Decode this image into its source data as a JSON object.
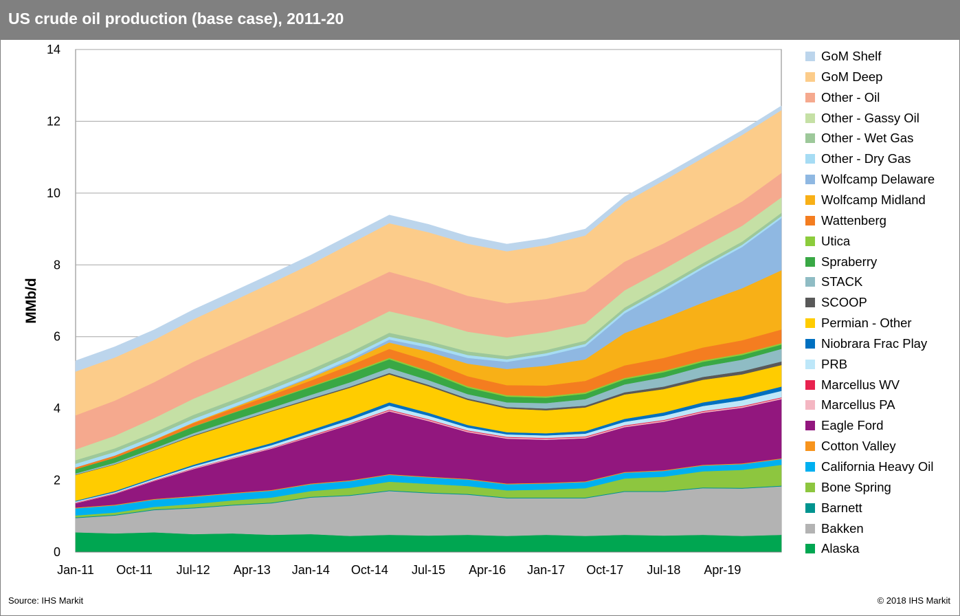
{
  "title": "US crude oil production (base case), 2011-20",
  "source": "Source: IHS Markit",
  "copyright": "© 2018 IHS Markit",
  "chart_data": {
    "type": "area",
    "stacked": true,
    "title": "US crude oil production (base case), 2011-20",
    "ylabel": "MMb/d",
    "xlabel": "",
    "ylim": [
      0,
      14
    ],
    "yticks": [
      0,
      2,
      4,
      6,
      8,
      10,
      12,
      14
    ],
    "grid": "horizontal",
    "legend_position": "right",
    "x": [
      "Jan-11",
      "Jul-11",
      "Jan-12",
      "Jul-12",
      "Jan-13",
      "Jul-13",
      "Jan-14",
      "Jul-14",
      "Jan-15",
      "Jul-15",
      "Jan-16",
      "Jul-16",
      "Jan-17",
      "Jul-17",
      "Jan-18",
      "Jul-18",
      "Jan-19",
      "Jul-19",
      "Jan-20"
    ],
    "xtick_labels": [
      "Jan-11",
      "Oct-11",
      "Jul-12",
      "Apr-13",
      "Jan-14",
      "Oct-14",
      "Jul-15",
      "Apr-16",
      "Jan-17",
      "Oct-17",
      "Jul-18",
      "Apr-19"
    ],
    "series": [
      {
        "name": "Alaska",
        "color": "#00a651",
        "values": [
          0.55,
          0.52,
          0.55,
          0.5,
          0.52,
          0.48,
          0.5,
          0.45,
          0.48,
          0.46,
          0.48,
          0.45,
          0.48,
          0.45,
          0.48,
          0.46,
          0.48,
          0.45,
          0.48
        ]
      },
      {
        "name": "Bakken",
        "color": "#b3b3b3",
        "values": [
          0.4,
          0.5,
          0.62,
          0.72,
          0.78,
          0.88,
          1.02,
          1.12,
          1.22,
          1.18,
          1.12,
          1.05,
          1.02,
          1.05,
          1.2,
          1.22,
          1.3,
          1.32,
          1.35
        ]
      },
      {
        "name": "Barnett",
        "color": "#00948f",
        "values": [
          0.02,
          0.02,
          0.02,
          0.02,
          0.02,
          0.02,
          0.02,
          0.02,
          0.02,
          0.02,
          0.02,
          0.02,
          0.02,
          0.02,
          0.02,
          0.02,
          0.02,
          0.02,
          0.02
        ]
      },
      {
        "name": "Bone Spring",
        "color": "#8dc63f",
        "values": [
          0.05,
          0.06,
          0.07,
          0.1,
          0.12,
          0.14,
          0.16,
          0.2,
          0.24,
          0.24,
          0.22,
          0.2,
          0.22,
          0.26,
          0.35,
          0.4,
          0.45,
          0.5,
          0.58
        ]
      },
      {
        "name": "California Heavy Oil",
        "color": "#00b0f0",
        "values": [
          0.2,
          0.2,
          0.2,
          0.2,
          0.19,
          0.19,
          0.19,
          0.19,
          0.19,
          0.18,
          0.18,
          0.17,
          0.17,
          0.17,
          0.16,
          0.16,
          0.16,
          0.16,
          0.16
        ]
      },
      {
        "name": "Cotton Valley",
        "color": "#f7941d",
        "values": [
          0.02,
          0.02,
          0.02,
          0.02,
          0.02,
          0.02,
          0.02,
          0.02,
          0.02,
          0.02,
          0.02,
          0.02,
          0.02,
          0.02,
          0.02,
          0.02,
          0.02,
          0.02,
          0.02
        ]
      },
      {
        "name": "Eagle Ford",
        "color": "#92177e",
        "values": [
          0.12,
          0.3,
          0.5,
          0.75,
          0.95,
          1.15,
          1.3,
          1.55,
          1.75,
          1.55,
          1.3,
          1.25,
          1.2,
          1.2,
          1.25,
          1.35,
          1.45,
          1.55,
          1.65
        ]
      },
      {
        "name": "Marcellus PA",
        "color": "#f4b6c2",
        "values": [
          0.01,
          0.01,
          0.01,
          0.02,
          0.02,
          0.02,
          0.02,
          0.02,
          0.03,
          0.03,
          0.03,
          0.03,
          0.03,
          0.03,
          0.03,
          0.03,
          0.03,
          0.03,
          0.03
        ]
      },
      {
        "name": "Marcellus WV",
        "color": "#e8224f",
        "values": [
          0.01,
          0.01,
          0.01,
          0.01,
          0.01,
          0.01,
          0.02,
          0.02,
          0.02,
          0.02,
          0.02,
          0.02,
          0.02,
          0.02,
          0.02,
          0.02,
          0.02,
          0.02,
          0.02
        ]
      },
      {
        "name": "PRB",
        "color": "#bde7f9",
        "values": [
          0.03,
          0.03,
          0.04,
          0.05,
          0.06,
          0.07,
          0.08,
          0.09,
          0.11,
          0.1,
          0.08,
          0.07,
          0.07,
          0.08,
          0.1,
          0.12,
          0.14,
          0.16,
          0.18
        ]
      },
      {
        "name": "Niobrara Frac Play",
        "color": "#0070c0",
        "values": [
          0.02,
          0.03,
          0.03,
          0.04,
          0.05,
          0.06,
          0.07,
          0.08,
          0.09,
          0.08,
          0.07,
          0.06,
          0.06,
          0.07,
          0.08,
          0.09,
          0.1,
          0.11,
          0.12
        ]
      },
      {
        "name": "Permian - Other",
        "color": "#ffcc00",
        "values": [
          0.72,
          0.74,
          0.76,
          0.8,
          0.84,
          0.88,
          0.85,
          0.82,
          0.78,
          0.74,
          0.7,
          0.66,
          0.64,
          0.66,
          0.68,
          0.65,
          0.63,
          0.61,
          0.6
        ]
      },
      {
        "name": "SCOOP",
        "color": "#595959",
        "values": [
          0.01,
          0.01,
          0.01,
          0.02,
          0.02,
          0.02,
          0.03,
          0.03,
          0.04,
          0.04,
          0.04,
          0.04,
          0.05,
          0.05,
          0.06,
          0.07,
          0.08,
          0.09,
          0.1
        ]
      },
      {
        "name": "STACK",
        "color": "#8fbcc4",
        "values": [
          0.03,
          0.04,
          0.05,
          0.06,
          0.07,
          0.08,
          0.1,
          0.12,
          0.14,
          0.13,
          0.12,
          0.13,
          0.15,
          0.18,
          0.22,
          0.26,
          0.29,
          0.32,
          0.35
        ]
      },
      {
        "name": "Spraberry",
        "color": "#39a845",
        "values": [
          0.12,
          0.14,
          0.16,
          0.18,
          0.2,
          0.21,
          0.22,
          0.24,
          0.24,
          0.22,
          0.18,
          0.16,
          0.15,
          0.15,
          0.14,
          0.14,
          0.13,
          0.13,
          0.12
        ]
      },
      {
        "name": "Utica",
        "color": "#8ccc3c",
        "values": [
          0.0,
          0.0,
          0.0,
          0.01,
          0.01,
          0.02,
          0.02,
          0.03,
          0.04,
          0.04,
          0.04,
          0.04,
          0.04,
          0.04,
          0.04,
          0.04,
          0.04,
          0.04,
          0.04
        ]
      },
      {
        "name": "Wattenberg",
        "color": "#f47d20",
        "values": [
          0.05,
          0.06,
          0.07,
          0.09,
          0.11,
          0.13,
          0.16,
          0.2,
          0.25,
          0.28,
          0.28,
          0.28,
          0.3,
          0.32,
          0.35,
          0.36,
          0.36,
          0.37,
          0.38
        ]
      },
      {
        "name": "Wolfcamp Midland",
        "color": "#f8b017",
        "values": [
          0.0,
          0.0,
          0.01,
          0.02,
          0.03,
          0.05,
          0.08,
          0.12,
          0.18,
          0.25,
          0.35,
          0.45,
          0.55,
          0.6,
          0.9,
          1.1,
          1.25,
          1.45,
          1.65
        ]
      },
      {
        "name": "Wolfcamp Delaware",
        "color": "#8fb8e2",
        "values": [
          0.0,
          0.0,
          0.0,
          0.0,
          0.01,
          0.02,
          0.03,
          0.05,
          0.08,
          0.12,
          0.16,
          0.2,
          0.28,
          0.36,
          0.55,
          0.75,
          0.95,
          1.15,
          1.45
        ]
      },
      {
        "name": "Other - Dry Gas",
        "color": "#a6dcf4",
        "values": [
          0.1,
          0.1,
          0.1,
          0.1,
          0.09,
          0.09,
          0.09,
          0.09,
          0.08,
          0.08,
          0.08,
          0.07,
          0.07,
          0.07,
          0.07,
          0.07,
          0.06,
          0.06,
          0.06
        ]
      },
      {
        "name": "Other - Wet Gas",
        "color": "#9dc89a",
        "values": [
          0.1,
          0.1,
          0.1,
          0.11,
          0.11,
          0.11,
          0.11,
          0.11,
          0.11,
          0.1,
          0.1,
          0.09,
          0.09,
          0.09,
          0.09,
          0.09,
          0.09,
          0.09,
          0.09
        ]
      },
      {
        "name": "Other - Gassy Oil",
        "color": "#c5e0a5",
        "values": [
          0.3,
          0.35,
          0.4,
          0.45,
          0.5,
          0.55,
          0.58,
          0.6,
          0.6,
          0.58,
          0.55,
          0.52,
          0.5,
          0.48,
          0.48,
          0.46,
          0.45,
          0.44,
          0.43
        ]
      },
      {
        "name": "Other - Oil",
        "color": "#f5a98e",
        "values": [
          0.95,
          0.98,
          1.0,
          1.03,
          1.06,
          1.08,
          1.1,
          1.12,
          1.1,
          1.05,
          1.0,
          0.95,
          0.92,
          0.9,
          0.8,
          0.72,
          0.68,
          0.68,
          0.68
        ]
      },
      {
        "name": "GoM Deep",
        "color": "#fccc8a",
        "values": [
          1.22,
          1.2,
          1.18,
          1.18,
          1.2,
          1.22,
          1.25,
          1.3,
          1.35,
          1.4,
          1.45,
          1.45,
          1.5,
          1.55,
          1.65,
          1.75,
          1.8,
          1.85,
          1.75
        ]
      },
      {
        "name": "GoM Shelf",
        "color": "#bcd5ec",
        "values": [
          0.3,
          0.3,
          0.28,
          0.27,
          0.26,
          0.25,
          0.25,
          0.24,
          0.23,
          0.22,
          0.21,
          0.2,
          0.19,
          0.18,
          0.16,
          0.15,
          0.14,
          0.13,
          0.12
        ]
      }
    ]
  }
}
